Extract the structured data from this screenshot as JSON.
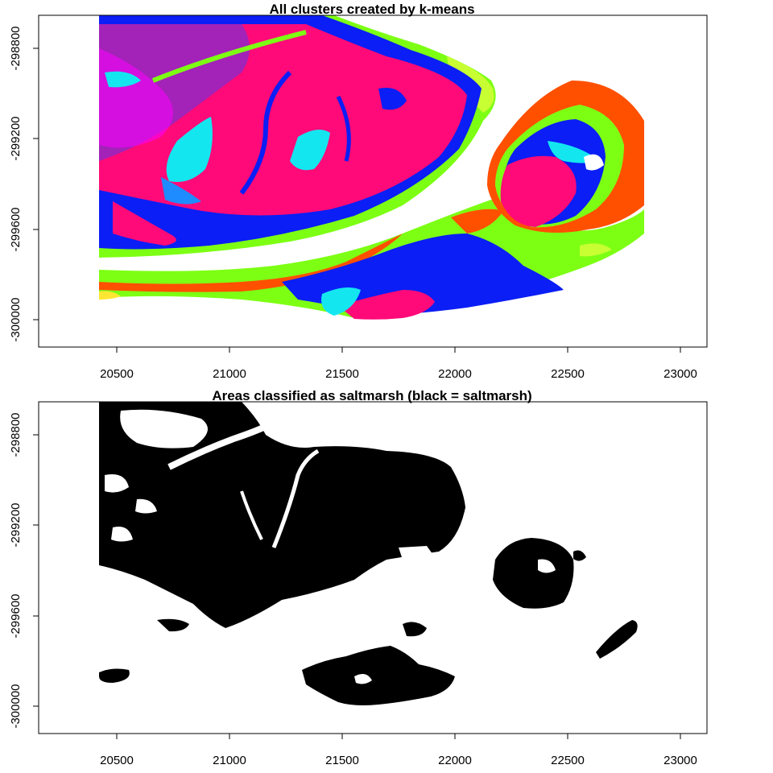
{
  "chart_data": [
    {
      "type": "map",
      "title": "All clusters created by k-means",
      "x_ticks": [
        "20500",
        "21000",
        "21500",
        "22000",
        "22500",
        "23000"
      ],
      "y_ticks": [
        "-298800",
        "-299200",
        "-299600",
        "-300000"
      ],
      "palette": {
        "pink": "#ff0a78",
        "blue": "#0a1ef5",
        "green": "#7dff14",
        "lime": "#c8ff32",
        "cyan": "#14e6f0",
        "azure": "#1e8cff",
        "orange": "#ff5000",
        "yellow": "#ffe632",
        "magenta": "#ff00ff",
        "purple": "#8c28c8"
      }
    },
    {
      "type": "map",
      "title": "Areas classified as saltmarsh (black = saltmarsh)",
      "x_ticks": [
        "20500",
        "21000",
        "21500",
        "22000",
        "22500",
        "23000"
      ],
      "y_ticks": [
        "-298800",
        "-299200",
        "-299600",
        "-300000"
      ],
      "palette": {
        "saltmarsh": "#000000",
        "other": "#ffffff"
      }
    }
  ]
}
